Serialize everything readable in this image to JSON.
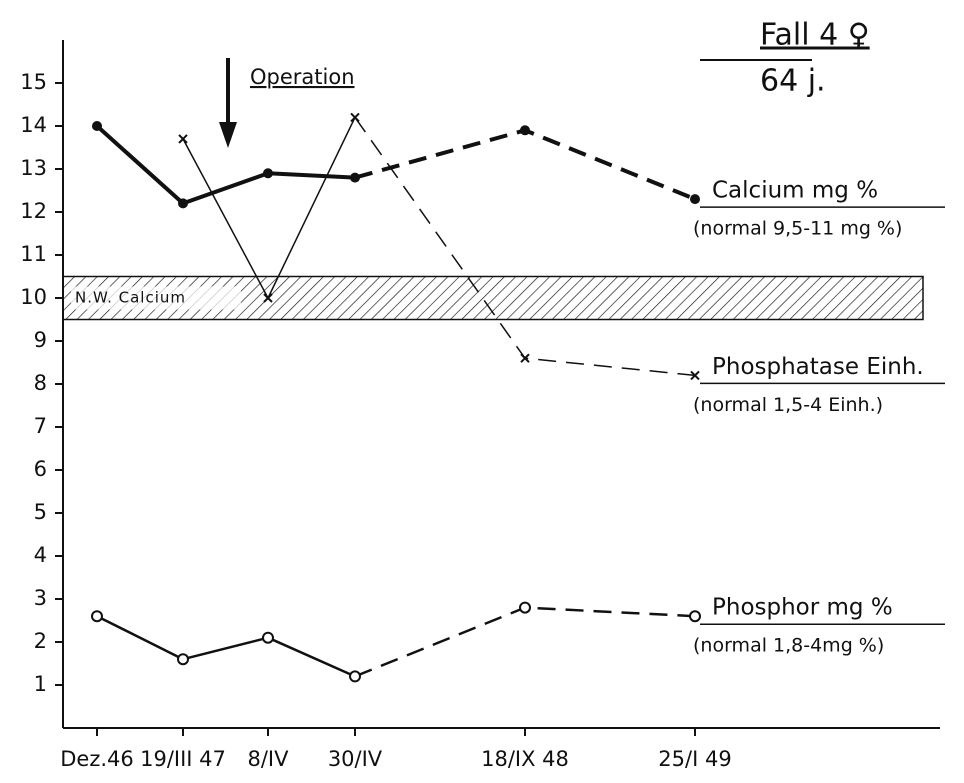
{
  "chart_data": {
    "type": "line",
    "title": "Fall 4 ♀",
    "subtitle": "64 j.",
    "annotation": "Operation",
    "categories": [
      "Dez.46",
      "19/III 47",
      "8/IV",
      "30/IV",
      "18/IX 48",
      "25/I 49"
    ],
    "series": [
      {
        "name": "Calcium mg %",
        "note": "(normal 9,5-11 mg %)",
        "color": "#111111",
        "marker": "dot",
        "width": 4,
        "dash_from": 3,
        "values": [
          14.0,
          12.2,
          12.9,
          12.8,
          13.9,
          12.3
        ]
      },
      {
        "name": "Phosphatase Einh.",
        "note": "(normal 1,5-4 Einh.)",
        "color": "#111111",
        "marker": "x",
        "width": 1.5,
        "dash_from": 3,
        "values": [
          null,
          13.7,
          10.0,
          14.2,
          8.6,
          8.2
        ]
      },
      {
        "name": "Phosphor mg %",
        "note": "(normal 1,8-4mg %)",
        "color": "#111111",
        "marker": "circle",
        "width": 2.5,
        "dash_from": 3,
        "values": [
          2.6,
          1.6,
          2.1,
          1.2,
          2.8,
          2.6
        ]
      }
    ],
    "band": {
      "label": "N.W. Calcium",
      "range": [
        9.5,
        10.5
      ]
    },
    "ylim": [
      0,
      16
    ],
    "yticks": [
      1,
      2,
      3,
      4,
      5,
      6,
      7,
      8,
      9,
      10,
      11,
      12,
      13,
      14,
      15
    ]
  }
}
